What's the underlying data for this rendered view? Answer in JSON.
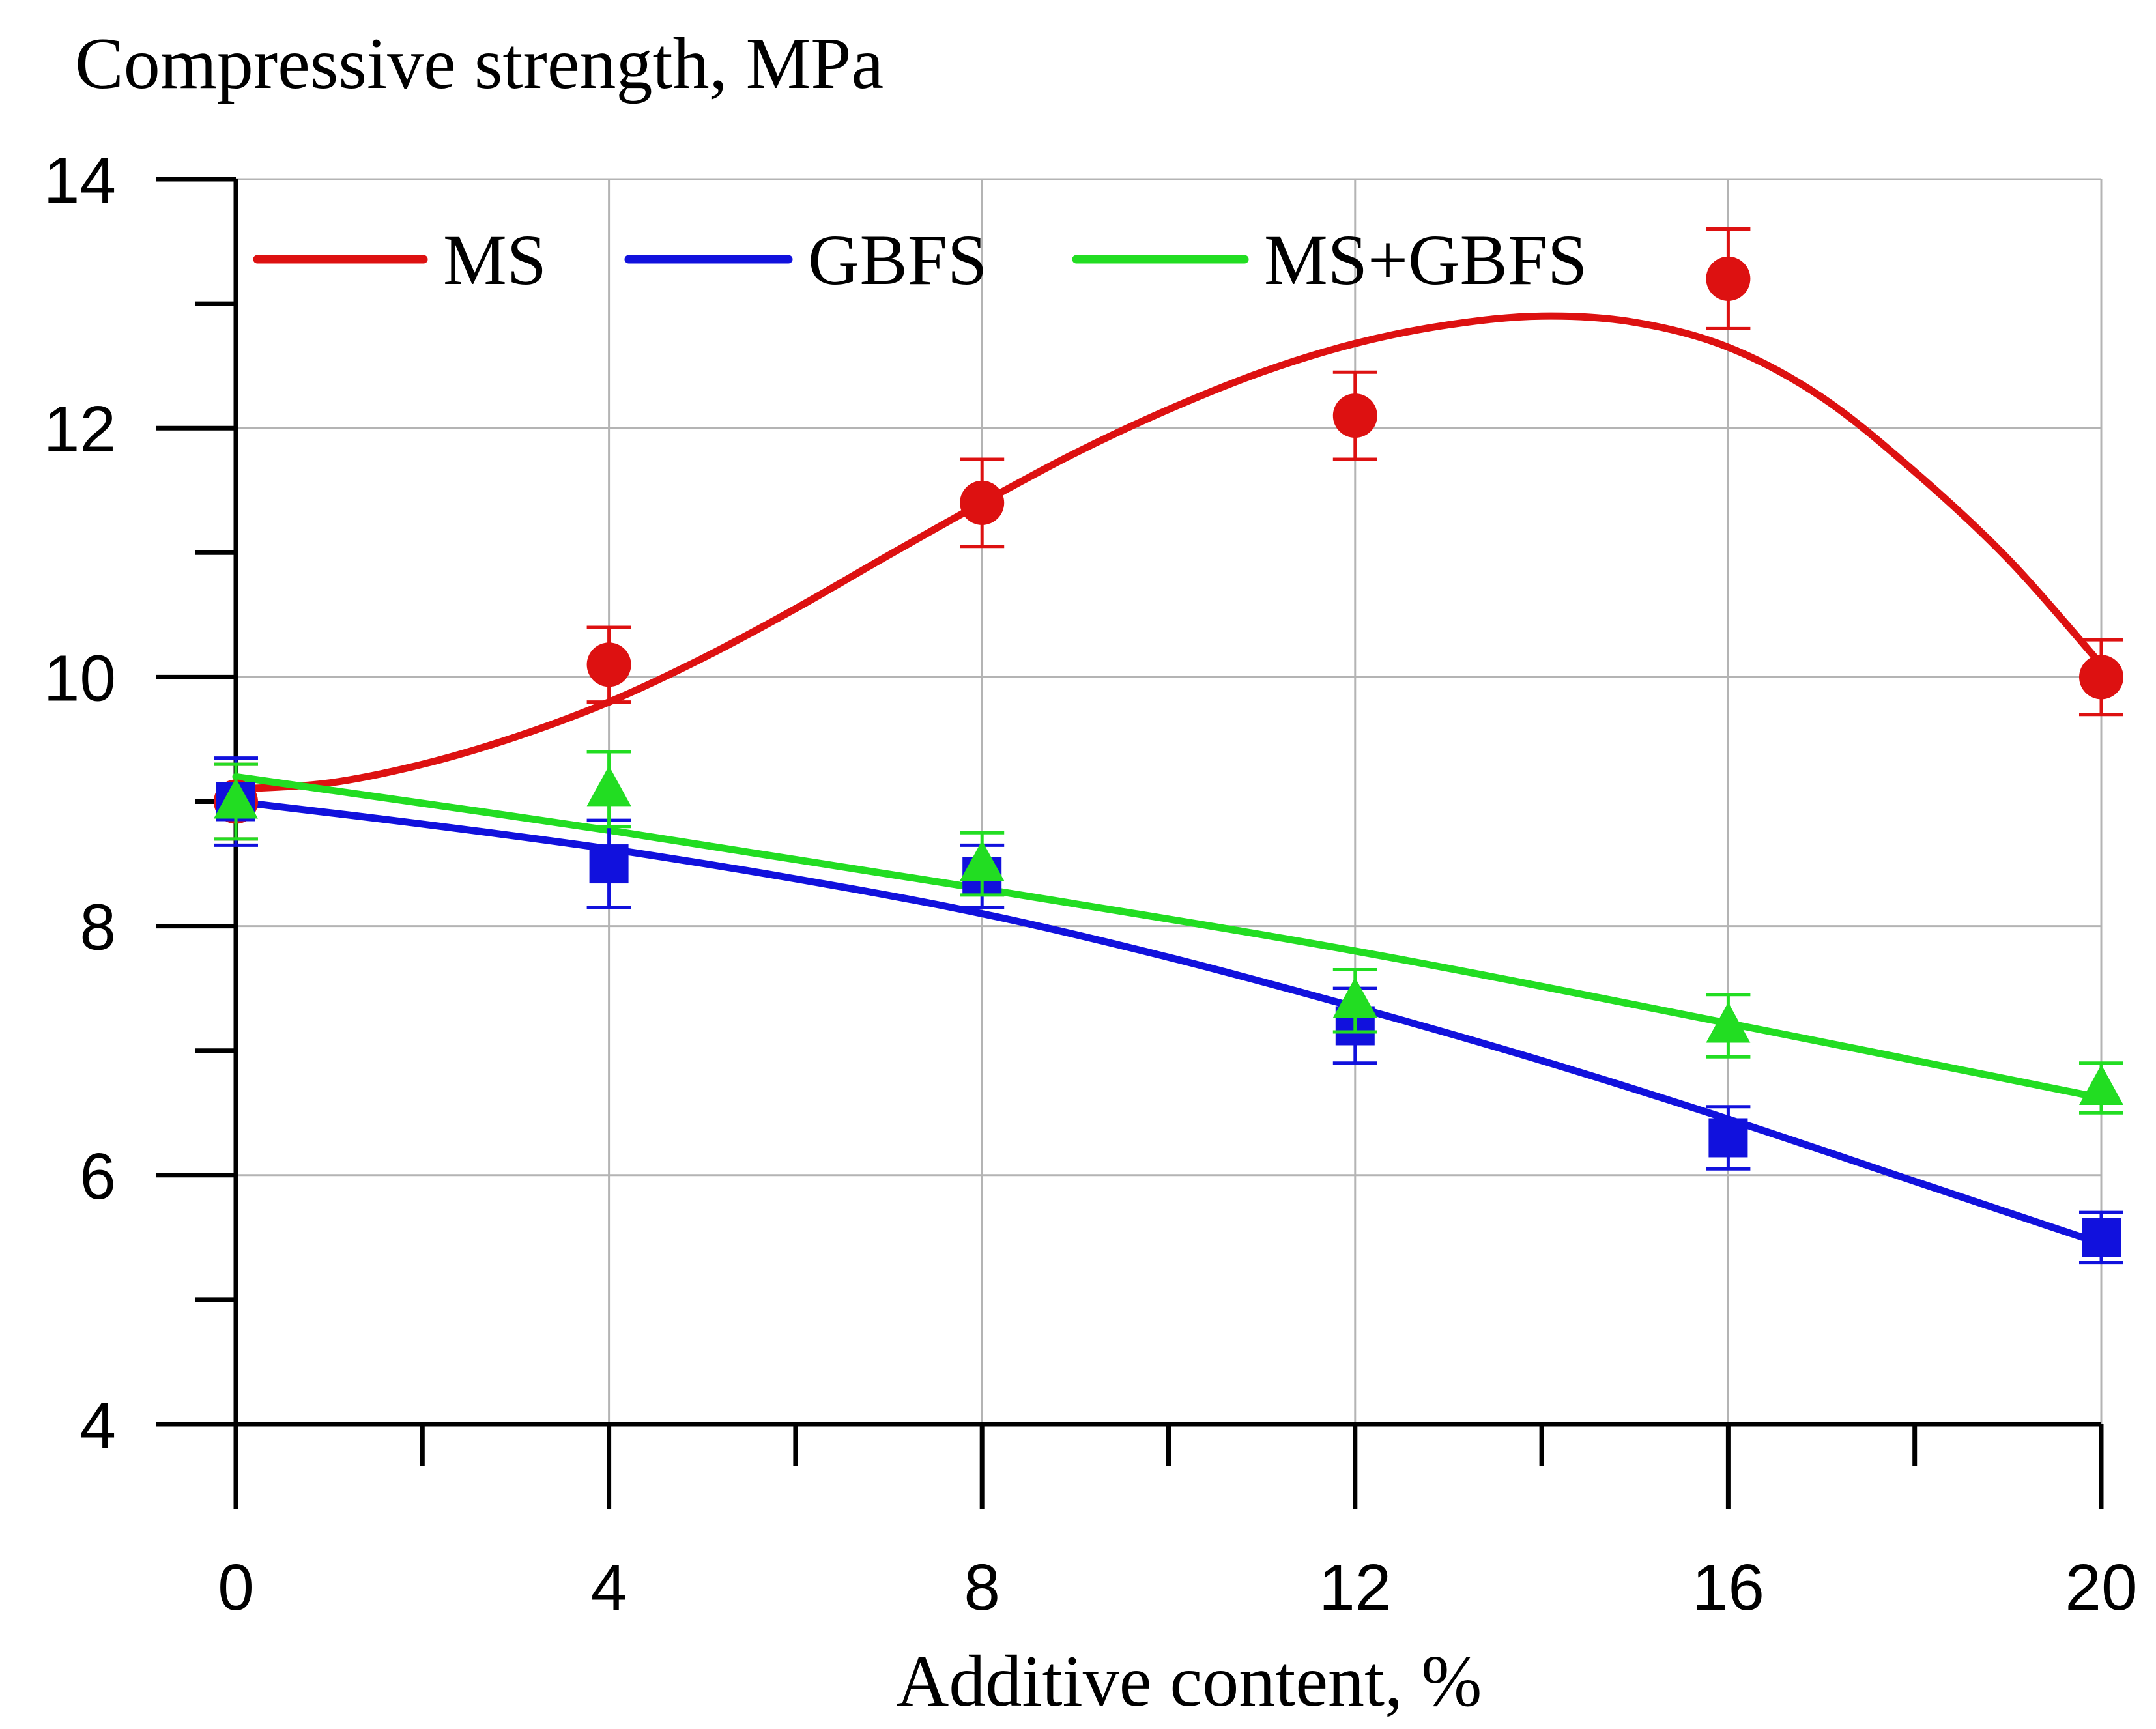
{
  "chart_data": {
    "type": "line",
    "ylabel": "Compressive strength, MPa",
    "xlabel": "Additive content, %",
    "xlim": [
      0,
      20
    ],
    "ylim": [
      4,
      14
    ],
    "x_ticks": [
      0,
      4,
      8,
      12,
      16,
      20
    ],
    "x_minor_ticks": [
      2,
      6,
      10,
      14,
      18
    ],
    "y_ticks": [
      4,
      6,
      8,
      10,
      12,
      14
    ],
    "y_minor_ticks": [
      5,
      7,
      9,
      11,
      13
    ],
    "grid": true,
    "legend_position": "top",
    "x": [
      0,
      4,
      8,
      12,
      16,
      20
    ],
    "series": [
      {
        "name": "MS",
        "color": "#dd1111",
        "marker": "circle",
        "values": [
          9.0,
          10.1,
          11.4,
          12.1,
          13.2,
          10.0
        ],
        "errors": [
          0.3,
          0.3,
          0.35,
          0.35,
          0.4,
          0.3
        ],
        "fit_x": [
          0,
          1,
          2,
          3,
          4,
          5,
          6,
          7,
          8,
          9,
          10,
          11,
          12,
          13,
          14,
          15,
          16,
          17,
          18,
          19,
          20
        ],
        "fit_y": [
          9.1,
          9.15,
          9.3,
          9.52,
          9.8,
          10.15,
          10.55,
          10.98,
          11.4,
          11.8,
          12.15,
          12.45,
          12.68,
          12.83,
          12.9,
          12.85,
          12.65,
          12.25,
          11.65,
          10.95,
          10.1
        ]
      },
      {
        "name": "GBFS",
        "color": "#1111dd",
        "marker": "square",
        "values": [
          9.0,
          8.5,
          8.4,
          7.2,
          6.3,
          5.5
        ],
        "errors": [
          0.35,
          0.35,
          0.25,
          0.3,
          0.25,
          0.2
        ],
        "fit_x": [
          0,
          2,
          4,
          6,
          8,
          10,
          12,
          14,
          16,
          18,
          20
        ],
        "fit_y": [
          9.0,
          8.82,
          8.62,
          8.38,
          8.1,
          7.75,
          7.35,
          6.92,
          6.45,
          5.95,
          5.45
        ]
      },
      {
        "name": "MS+GBFS",
        "color": "#22dd22",
        "marker": "triangle",
        "values": [
          9.0,
          9.1,
          8.5,
          7.4,
          7.2,
          6.7
        ],
        "errors": [
          0.3,
          0.3,
          0.25,
          0.25,
          0.25,
          0.2
        ],
        "fit_x": [
          0,
          4,
          8,
          12,
          16,
          20
        ],
        "fit_y": [
          9.2,
          8.77,
          8.3,
          7.8,
          7.22,
          6.62
        ]
      }
    ]
  }
}
